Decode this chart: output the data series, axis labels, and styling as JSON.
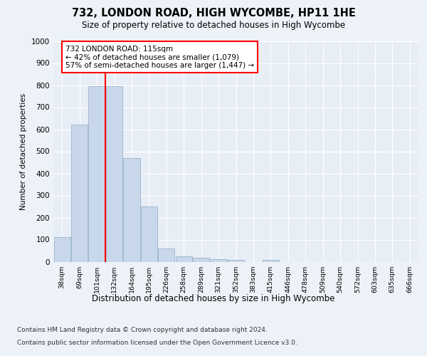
{
  "title1": "732, LONDON ROAD, HIGH WYCOMBE, HP11 1HE",
  "title2": "Size of property relative to detached houses in High Wycombe",
  "xlabel": "Distribution of detached houses by size in High Wycombe",
  "ylabel": "Number of detached properties",
  "categories": [
    "38sqm",
    "69sqm",
    "101sqm",
    "132sqm",
    "164sqm",
    "195sqm",
    "226sqm",
    "258sqm",
    "289sqm",
    "321sqm",
    "352sqm",
    "383sqm",
    "415sqm",
    "446sqm",
    "478sqm",
    "509sqm",
    "540sqm",
    "572sqm",
    "603sqm",
    "635sqm",
    "666sqm"
  ],
  "values": [
    110,
    620,
    795,
    795,
    470,
    250,
    60,
    25,
    17,
    12,
    8,
    0,
    8,
    0,
    0,
    0,
    0,
    0,
    0,
    0,
    0
  ],
  "bar_color": "#c8d8ea",
  "bar_edge_color": "#9ab4cc",
  "vline_x": 2.5,
  "vline_color": "red",
  "annotation_text": "732 LONDON ROAD: 115sqm\n← 42% of detached houses are smaller (1,079)\n57% of semi-detached houses are larger (1,447) →",
  "annotation_box_color": "white",
  "annotation_box_edge": "red",
  "ylim": [
    0,
    1000
  ],
  "yticks": [
    0,
    100,
    200,
    300,
    400,
    500,
    600,
    700,
    800,
    900,
    1000
  ],
  "footer1": "Contains HM Land Registry data © Crown copyright and database right 2024.",
  "footer2": "Contains public sector information licensed under the Open Government Licence v3.0.",
  "fig_bg_color": "#edf2f8",
  "plot_bg_color": "#e8eef6",
  "grid_color": "#ffffff"
}
